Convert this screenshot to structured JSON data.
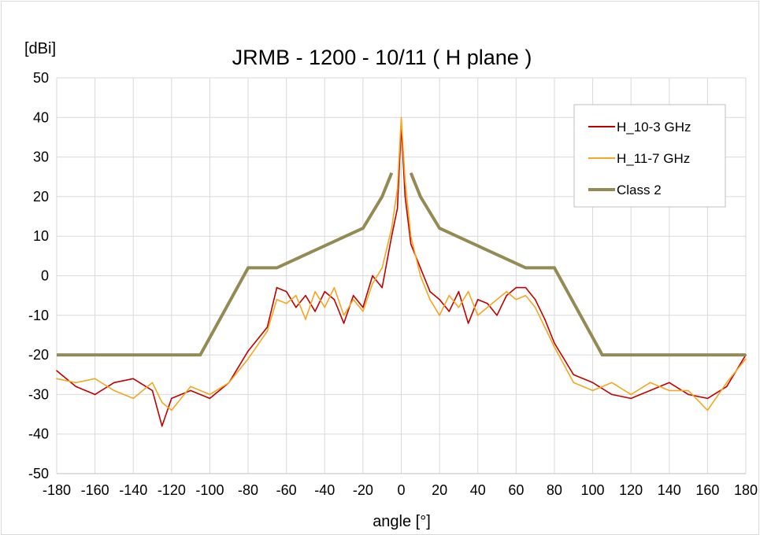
{
  "chart_data": {
    "type": "line",
    "title": "JRMB - 1200 - 10/11 ( H plane )",
    "ylabel": "[dBi]",
    "xlabel": "angle [°]",
    "xlim": [
      -180,
      180
    ],
    "ylim": [
      -50,
      50
    ],
    "xticks": [
      -180,
      -160,
      -140,
      -120,
      -100,
      -80,
      -60,
      -40,
      -20,
      0,
      20,
      40,
      60,
      80,
      100,
      120,
      140,
      160,
      180
    ],
    "yticks": [
      -50,
      -40,
      -30,
      -20,
      -10,
      0,
      10,
      20,
      30,
      40,
      50
    ],
    "grid": true,
    "legend_position": "top-right",
    "series": [
      {
        "name": "H_10-3 GHz",
        "color": "#c00000",
        "x": [
          -180,
          -170,
          -160,
          -150,
          -140,
          -130,
          -125,
          -120,
          -110,
          -100,
          -90,
          -80,
          -70,
          -65,
          -60,
          -55,
          -50,
          -45,
          -40,
          -35,
          -30,
          -25,
          -20,
          -15,
          -10,
          -5,
          -2,
          0,
          2,
          5,
          10,
          15,
          20,
          25,
          30,
          35,
          40,
          45,
          50,
          55,
          60,
          65,
          70,
          75,
          80,
          90,
          100,
          110,
          120,
          130,
          140,
          150,
          160,
          170,
          180
        ],
        "y": [
          -24,
          -28,
          -30,
          -27,
          -26,
          -29,
          -38,
          -31,
          -29,
          -31,
          -27,
          -19,
          -13,
          -3,
          -4,
          -8,
          -5,
          -9,
          -4,
          -6,
          -12,
          -5,
          -8,
          0,
          -3,
          10,
          17,
          38,
          20,
          8,
          2,
          -4,
          -6,
          -9,
          -4,
          -12,
          -6,
          -7,
          -10,
          -5,
          -3,
          -3,
          -6,
          -11,
          -17,
          -25,
          -27,
          -30,
          -31,
          -29,
          -27,
          -30,
          -31,
          -28,
          -20
        ]
      },
      {
        "name": "H_11-7 GHz",
        "color": "#f5a623",
        "x": [
          -180,
          -170,
          -160,
          -150,
          -140,
          -130,
          -125,
          -120,
          -110,
          -100,
          -90,
          -80,
          -70,
          -65,
          -60,
          -55,
          -50,
          -45,
          -40,
          -35,
          -30,
          -25,
          -20,
          -15,
          -10,
          -5,
          -2,
          0,
          2,
          5,
          10,
          15,
          20,
          25,
          30,
          35,
          40,
          45,
          50,
          55,
          60,
          65,
          70,
          75,
          80,
          90,
          100,
          110,
          120,
          130,
          140,
          150,
          160,
          170,
          180
        ],
        "y": [
          -26,
          -27,
          -26,
          -29,
          -31,
          -27,
          -32,
          -34,
          -28,
          -30,
          -27,
          -21,
          -14,
          -6,
          -7,
          -5,
          -11,
          -4,
          -8,
          -3,
          -10,
          -6,
          -9,
          -2,
          2,
          12,
          22,
          40,
          24,
          10,
          0,
          -6,
          -10,
          -5,
          -8,
          -4,
          -10,
          -8,
          -6,
          -4,
          -6,
          -5,
          -8,
          -13,
          -18,
          -27,
          -29,
          -27,
          -30,
          -27,
          -29,
          -29,
          -34,
          -27,
          -21
        ]
      },
      {
        "name": "Class 2",
        "color": "#948a54",
        "segments": [
          {
            "x": [
              -180,
              -105,
              -80,
              -65,
              -20,
              -10,
              -5
            ],
            "y": [
              -20,
              -20,
              2,
              2,
              12,
              20,
              26
            ]
          },
          {
            "x": [
              5,
              10,
              20,
              65,
              80,
              105,
              180
            ],
            "y": [
              26,
              20,
              12,
              2,
              2,
              -20,
              -20
            ]
          }
        ]
      }
    ]
  }
}
